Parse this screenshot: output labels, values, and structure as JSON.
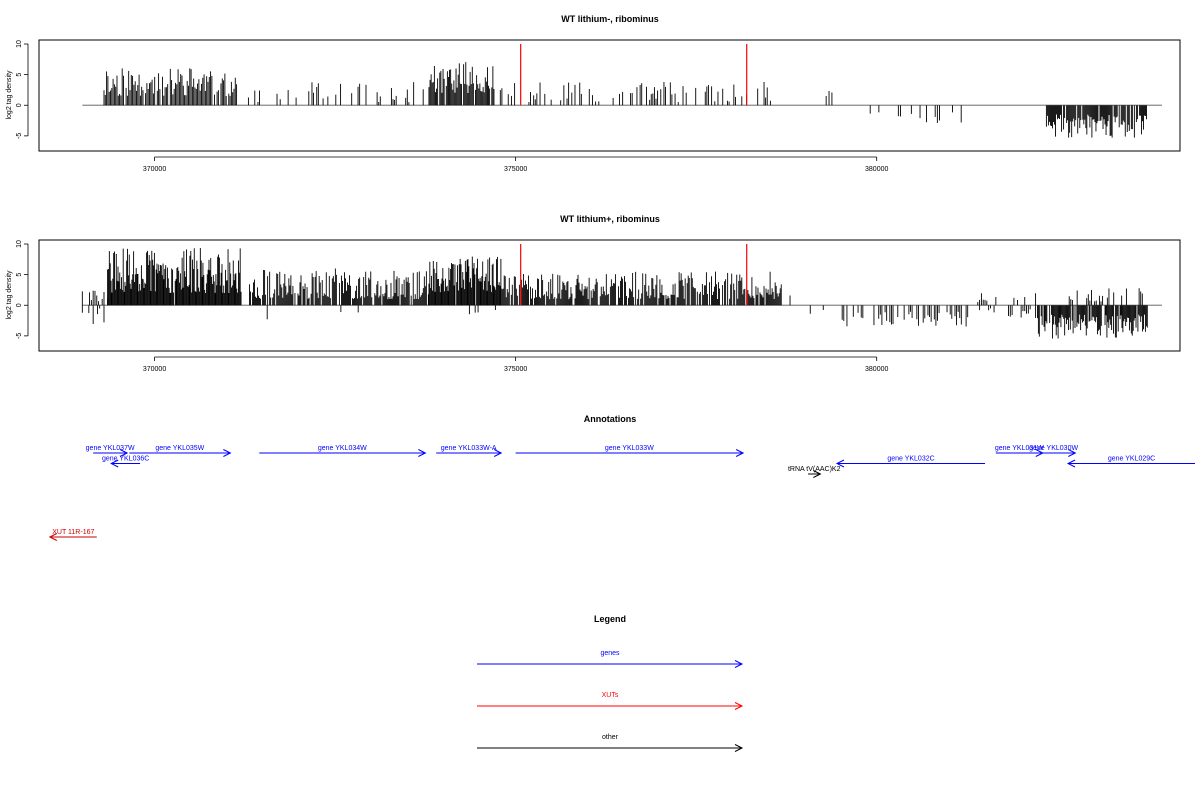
{
  "chart_data": [
    {
      "type": "bar",
      "title": "WT lithium-, ribominus",
      "ylabel": "log2 tag density",
      "xlim": [
        368400,
        384200
      ],
      "ylim": [
        -6,
        10
      ],
      "xticks": [
        370000,
        375000,
        380000
      ],
      "yticks": [
        -5,
        0,
        5,
        10
      ],
      "baseline": 0,
      "seed": 11,
      "bar_color": "#000000",
      "baseline_color": "#888888",
      "segments": [
        {
          "strand": "+",
          "from": 369300,
          "to": 371150,
          "min": 1.5,
          "max": 6.5,
          "density": 0.95,
          "step": 18
        },
        {
          "strand": "+",
          "from": 371300,
          "to": 373800,
          "min": 0.5,
          "max": 3.8,
          "density": 0.35,
          "step": 22
        },
        {
          "strand": "+",
          "from": 373800,
          "to": 374700,
          "min": 2,
          "max": 7.2,
          "density": 0.95,
          "step": 15
        },
        {
          "strand": "+",
          "from": 374700,
          "to": 378600,
          "min": 0.5,
          "max": 3.8,
          "density": 0.45,
          "step": 22
        },
        {
          "strand": "+",
          "from": 379300,
          "to": 379400,
          "min": 1.5,
          "max": 2.5,
          "density": 1.0,
          "step": 40
        },
        {
          "strand": "-",
          "from": 379550,
          "to": 381200,
          "min": 1,
          "max": 3.2,
          "density": 0.35,
          "step": 30
        },
        {
          "strand": "-",
          "from": 382350,
          "to": 383750,
          "min": 1.5,
          "max": 5.5,
          "density": 0.9,
          "step": 14
        }
      ],
      "markers": [
        {
          "x": 375070,
          "y": 10,
          "color": "#ff0000"
        },
        {
          "x": 378200,
          "y": 10,
          "color": "#ff0000"
        }
      ]
    },
    {
      "type": "bar",
      "title": "WT lithium+, ribominus",
      "ylabel": "log2 tag density",
      "xlim": [
        368400,
        384200
      ],
      "ylim": [
        -6,
        10
      ],
      "xticks": [
        370000,
        375000,
        380000
      ],
      "yticks": [
        -5,
        0,
        5,
        10
      ],
      "baseline": 0,
      "seed": 29,
      "bar_color": "#000000",
      "baseline_color": "#888888",
      "segments": [
        {
          "strand": "+",
          "from": 369000,
          "to": 369350,
          "min": 0.5,
          "max": 2.5,
          "density": 0.6,
          "step": 25
        },
        {
          "strand": "-",
          "from": 369000,
          "to": 369350,
          "min": 0.5,
          "max": 3.2,
          "density": 0.5,
          "step": 30
        },
        {
          "strand": "+",
          "from": 369350,
          "to": 371200,
          "min": 2,
          "max": 9.5,
          "density": 0.98,
          "step": 12
        },
        {
          "strand": "+",
          "from": 371300,
          "to": 373800,
          "min": 1,
          "max": 6,
          "density": 0.85,
          "step": 14
        },
        {
          "strand": "-",
          "from": 371500,
          "to": 373200,
          "min": 0.5,
          "max": 2.5,
          "density": 0.1,
          "step": 60
        },
        {
          "strand": "+",
          "from": 373800,
          "to": 374800,
          "min": 2,
          "max": 8,
          "density": 0.95,
          "step": 12
        },
        {
          "strand": "-",
          "from": 374200,
          "to": 374800,
          "min": 0.5,
          "max": 2,
          "density": 0.3,
          "step": 40
        },
        {
          "strand": "+",
          "from": 374800,
          "to": 378700,
          "min": 1,
          "max": 5.5,
          "density": 0.85,
          "step": 14
        },
        {
          "strand": "+",
          "from": 378800,
          "to": 379300,
          "min": 0.5,
          "max": 2.5,
          "density": 0.2,
          "step": 60
        },
        {
          "strand": "-",
          "from": 378900,
          "to": 379300,
          "min": 0.5,
          "max": 1.5,
          "density": 0.3,
          "step": 60
        },
        {
          "strand": "-",
          "from": 379500,
          "to": 381300,
          "min": 1,
          "max": 3.5,
          "density": 0.5,
          "step": 22
        },
        {
          "strand": "+",
          "from": 381300,
          "to": 382200,
          "min": 0.5,
          "max": 2.5,
          "density": 0.35,
          "step": 25
        },
        {
          "strand": "-",
          "from": 381300,
          "to": 382200,
          "min": 0.5,
          "max": 2,
          "density": 0.35,
          "step": 25
        },
        {
          "strand": "-",
          "from": 382200,
          "to": 383750,
          "min": 1.5,
          "max": 5.5,
          "density": 0.85,
          "step": 13
        },
        {
          "strand": "+",
          "from": 382600,
          "to": 383750,
          "min": 0.5,
          "max": 2.8,
          "density": 0.4,
          "step": 22
        }
      ],
      "markers": [
        {
          "x": 375070,
          "y": 10,
          "color": "#ff0000"
        },
        {
          "x": 378200,
          "y": 10,
          "color": "#ff0000"
        }
      ]
    }
  ],
  "annotations": {
    "title": "Annotations",
    "features": [
      {
        "label": "gene YKL037W",
        "start": 369150,
        "end": 369620,
        "strand": "+",
        "row": 0,
        "color": "#0000ff"
      },
      {
        "label": "gene YKL036C",
        "start": 369400,
        "end": 369800,
        "strand": "-",
        "row": 1,
        "color": "#0000ff"
      },
      {
        "label": "gene YKL035W",
        "start": 369650,
        "end": 371050,
        "strand": "+",
        "row": 0,
        "color": "#0000ff"
      },
      {
        "label": "gene YKL034W",
        "start": 371450,
        "end": 373750,
        "strand": "+",
        "row": 0,
        "color": "#0000ff"
      },
      {
        "label": "gene YKL033W-A",
        "start": 373900,
        "end": 374800,
        "strand": "+",
        "row": 0,
        "color": "#0000ff"
      },
      {
        "label": "gene YKL033W",
        "start": 375000,
        "end": 378150,
        "strand": "+",
        "row": 0,
        "color": "#0000ff"
      },
      {
        "label": "tRNA tV(AAC)K2",
        "start": 379050,
        "end": 379220,
        "strand": "+",
        "row": 2,
        "color": "#000000"
      },
      {
        "label": "gene YKL032C",
        "start": 379450,
        "end": 381500,
        "strand": "-",
        "row": 1,
        "color": "#0000ff"
      },
      {
        "label": "gene YKL031W",
        "start": 381650,
        "end": 382300,
        "strand": "+",
        "row": 0,
        "color": "#0000ff"
      },
      {
        "label": "gene YKL030W",
        "start": 382150,
        "end": 382750,
        "strand": "+",
        "row": 0,
        "color": "#0000ff"
      },
      {
        "label": "gene YKL029C",
        "start": 382650,
        "end": 384600,
        "strand": "-",
        "row": 1,
        "color": "#0000ff"
      },
      {
        "label": "XUT 11R-167",
        "start": 368550,
        "end": 369200,
        "strand": "-",
        "row": 8,
        "color": "#cc0000"
      }
    ]
  },
  "legend": {
    "title": "Legend",
    "items": [
      {
        "label": "genes",
        "color": "#0000ff"
      },
      {
        "label": "XUTs",
        "color": "#ff0000"
      },
      {
        "label": "other",
        "color": "#000000"
      }
    ]
  }
}
